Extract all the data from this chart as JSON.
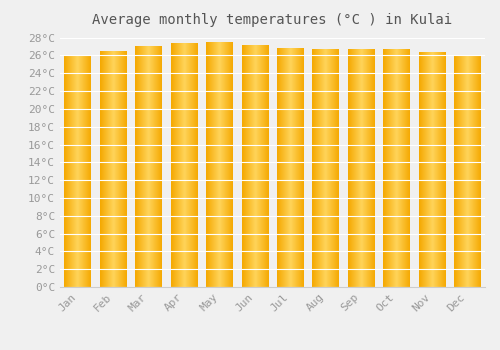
{
  "months": [
    "Jan",
    "Feb",
    "Mar",
    "Apr",
    "May",
    "Jun",
    "Jul",
    "Aug",
    "Sep",
    "Oct",
    "Nov",
    "Dec"
  ],
  "values": [
    26.0,
    26.5,
    27.0,
    27.3,
    27.5,
    27.1,
    26.8,
    26.7,
    26.7,
    26.7,
    26.3,
    25.9
  ],
  "bar_color_center": "#FFD45A",
  "bar_color_edge": "#F5A800",
  "title": "Average monthly temperatures (°C ) in Kulai",
  "ylim_min": 0,
  "ylim_max": 28,
  "ytick_step": 2,
  "background_color": "#f0f0f0",
  "grid_color": "#ffffff",
  "title_fontsize": 10,
  "tick_fontsize": 8,
  "bar_width": 0.75
}
